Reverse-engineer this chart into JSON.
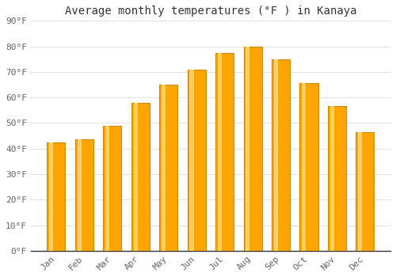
{
  "title": "Average monthly temperatures (°F ) in Kanaya",
  "months": [
    "Jan",
    "Feb",
    "Mar",
    "Apr",
    "May",
    "Jun",
    "Jul",
    "Aug",
    "Sep",
    "Oct",
    "Nov",
    "Dec"
  ],
  "values": [
    42.5,
    43.5,
    49.0,
    58.0,
    65.0,
    71.0,
    77.5,
    80.0,
    75.0,
    65.5,
    56.5,
    46.5
  ],
  "bar_color_main": "#FFA500",
  "bar_color_light": "#FFD060",
  "bar_color_edge": "#CC8800",
  "ylim": [
    0,
    90
  ],
  "yticks": [
    0,
    10,
    20,
    30,
    40,
    50,
    60,
    70,
    80,
    90
  ],
  "background_color": "#FFFFFF",
  "grid_color": "#DDDDDD",
  "title_fontsize": 10,
  "tick_fontsize": 8
}
